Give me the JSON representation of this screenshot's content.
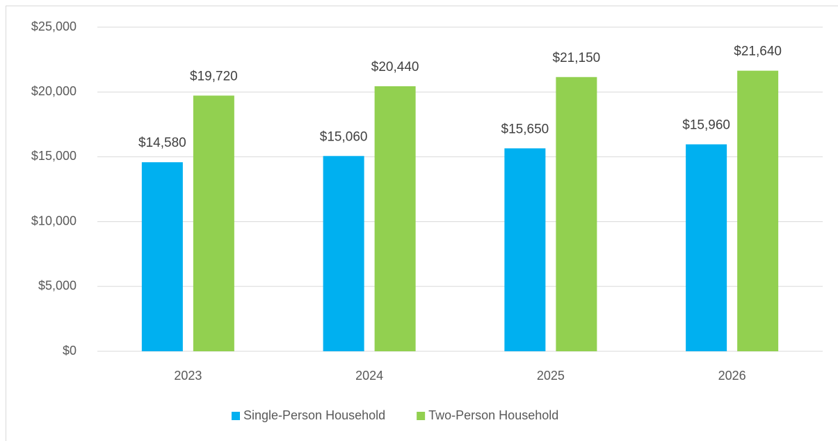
{
  "chart_data": {
    "type": "bar",
    "categories": [
      "2023",
      "2024",
      "2025",
      "2026"
    ],
    "series": [
      {
        "name": "Single-Person Household",
        "color": "#00b0f0",
        "values": [
          14580,
          15060,
          15650,
          15960
        ],
        "value_labels": [
          "$14,580",
          "$15,060",
          "$15,650",
          "$15,960"
        ]
      },
      {
        "name": "Two-Person Household",
        "color": "#92d050",
        "values": [
          19720,
          20440,
          21150,
          21640
        ],
        "value_labels": [
          "$19,720",
          "$20,440",
          "$21,150",
          "$21,640"
        ]
      }
    ],
    "ylim": [
      0,
      25000
    ],
    "yticks": [
      {
        "value": 0,
        "label": "$0"
      },
      {
        "value": 5000,
        "label": "$5,000"
      },
      {
        "value": 10000,
        "label": "$10,000"
      },
      {
        "value": 15000,
        "label": "$15,000"
      },
      {
        "value": 20000,
        "label": "$20,000"
      },
      {
        "value": 25000,
        "label": "$25,000"
      }
    ],
    "grid": true,
    "legend": "bottom"
  }
}
